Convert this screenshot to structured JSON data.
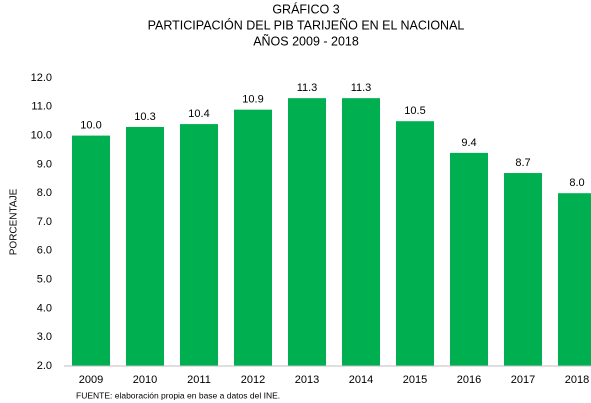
{
  "chart_data": {
    "type": "bar",
    "title": "GRÁFICO 3",
    "subtitle": [
      "PARTICIPACIÓN DEL PIB TARIJEÑO EN EL NACIONAL",
      "AÑOS 2009 - 2018"
    ],
    "y_label": "PORCENTAJE",
    "source": "FUENTE: elaboración propia en base a datos del INE.",
    "categories": [
      "2009",
      "2010",
      "2011",
      "2012",
      "2013",
      "2014",
      "2015",
      "2016",
      "2017",
      "2018"
    ],
    "values": [
      10.0,
      10.3,
      10.4,
      10.9,
      11.3,
      11.3,
      10.5,
      9.4,
      8.7,
      8.0
    ],
    "value_labels": [
      "10.0",
      "10.3",
      "10.4",
      "10.9",
      "11.3",
      "11.3",
      "10.5",
      "9.4",
      "8.7",
      "8.0"
    ],
    "color": "#00b050",
    "ylim": [
      2,
      12
    ],
    "yticks": [
      {
        "value": 2,
        "label": "2.0"
      },
      {
        "value": 3,
        "label": "3.0"
      },
      {
        "value": 4,
        "label": "4.0"
      },
      {
        "value": 5,
        "label": "5.0"
      },
      {
        "value": 6,
        "label": "6.0"
      },
      {
        "value": 7,
        "label": "7.0"
      },
      {
        "value": 8,
        "label": "8.0"
      },
      {
        "value": 9,
        "label": "9.0"
      },
      {
        "value": 10,
        "label": "10.0"
      },
      {
        "value": 11,
        "label": "11.0"
      },
      {
        "value": 12,
        "label": "12.0"
      }
    ],
    "grid": false
  }
}
